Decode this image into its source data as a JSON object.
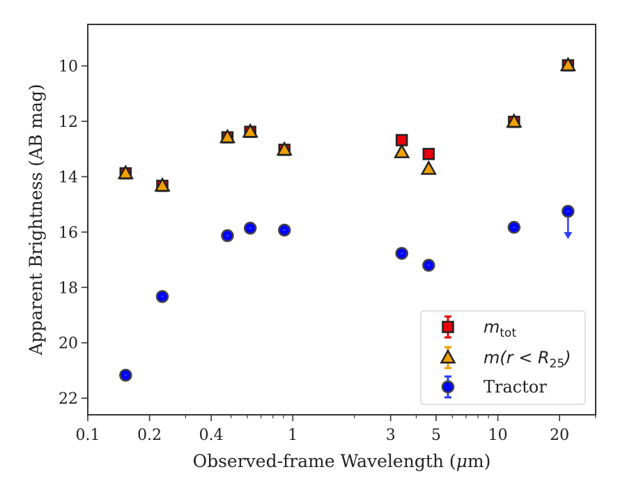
{
  "chart_data": {
    "type": "scatter",
    "xscale": "log",
    "y_inverted": true,
    "xlim": [
      0.1,
      30
    ],
    "ylim": [
      22.6,
      8.5
    ],
    "xlabel_prefix": "Observed-frame Wavelength (",
    "xlabel_mu": "μ",
    "xlabel_suffix": "m)",
    "ylabel": "Apparent Brightness (AB mag)",
    "x_ticks": [
      {
        "value": 0.1,
        "label": "0.1"
      },
      {
        "value": 0.2,
        "label": "0.2"
      },
      {
        "value": 0.4,
        "label": "0.4"
      },
      {
        "value": 1,
        "label": "1"
      },
      {
        "value": 3,
        "label": "3"
      },
      {
        "value": 5,
        "label": "5"
      },
      {
        "value": 10,
        "label": "10"
      },
      {
        "value": 20,
        "label": "20"
      }
    ],
    "y_ticks": [
      {
        "value": 10,
        "label": "10"
      },
      {
        "value": 12,
        "label": "12"
      },
      {
        "value": 14,
        "label": "14"
      },
      {
        "value": 16,
        "label": "16"
      },
      {
        "value": 18,
        "label": "18"
      },
      {
        "value": 20,
        "label": "20"
      },
      {
        "value": 22,
        "label": "22"
      }
    ],
    "legend_position": "lower-right",
    "series": [
      {
        "key": "mtot",
        "marker": "square",
        "color": "#e8000b",
        "errcolor": "#e8000b",
        "x": [
          0.153,
          0.231,
          0.48,
          0.62,
          0.91,
          3.4,
          4.6,
          12.0,
          22.0
        ],
        "y": [
          13.88,
          14.33,
          12.58,
          12.38,
          13.03,
          12.68,
          13.18,
          12.02,
          9.98
        ]
      },
      {
        "key": "mr25",
        "marker": "triangle",
        "color": "#f0a000",
        "errcolor": "#f0a000",
        "x": [
          0.153,
          0.231,
          0.48,
          0.62,
          0.91,
          3.4,
          4.6,
          12.0,
          22.0
        ],
        "y": [
          13.88,
          14.33,
          12.58,
          12.38,
          13.03,
          13.12,
          13.72,
          12.02,
          9.98
        ]
      },
      {
        "key": "tractor",
        "marker": "circle",
        "color": "#0000ff",
        "errcolor": "#2b3bff",
        "x": [
          0.153,
          0.231,
          0.48,
          0.62,
          0.91,
          3.4,
          4.6,
          12.0,
          22.0
        ],
        "y": [
          21.17,
          18.33,
          16.13,
          15.86,
          15.93,
          16.77,
          17.2,
          15.83,
          15.25
        ],
        "upper_limit_index": 8,
        "upper_limit_arrow_to": 16.2
      }
    ],
    "legend": [
      {
        "key": "mtot",
        "marker": "square",
        "main": "m",
        "sub": "tot"
      },
      {
        "key": "mr25",
        "marker": "triangle",
        "main": "m(r < R",
        "sub": "25",
        "close": ")"
      },
      {
        "key": "tractor",
        "marker": "circle",
        "text": "Tractor"
      }
    ]
  }
}
